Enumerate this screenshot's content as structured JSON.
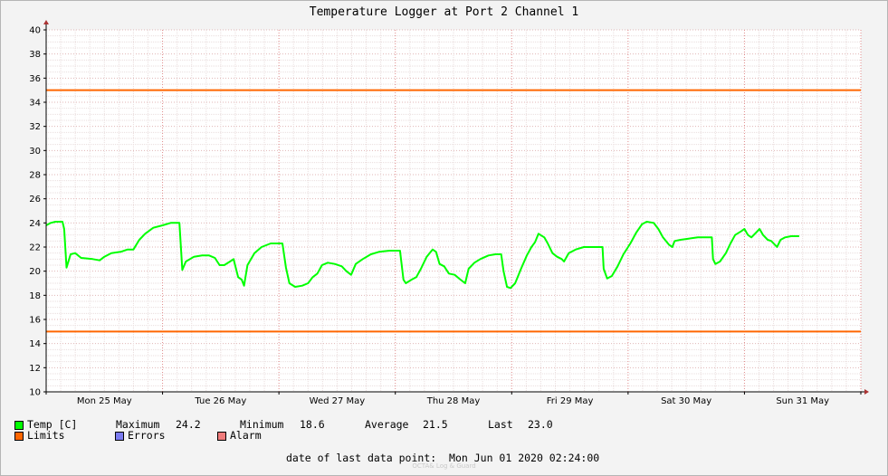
{
  "chart_data": {
    "type": "line",
    "title": "Temperature Logger at Port 2 Channel 1",
    "ylim": [
      10,
      40
    ],
    "y_ticks": [
      10,
      12,
      14,
      16,
      18,
      20,
      22,
      24,
      26,
      28,
      30,
      32,
      34,
      36,
      38,
      40
    ],
    "x_range_days": [
      0,
      7.0
    ],
    "x_ticks": [
      {
        "label": "Mon 25 May",
        "day": 0.5
      },
      {
        "label": "Tue 26 May",
        "day": 1.5
      },
      {
        "label": "Wed 27 May",
        "day": 2.5
      },
      {
        "label": "Thu 28 May",
        "day": 3.5
      },
      {
        "label": "Fri 29 May",
        "day": 4.5
      },
      {
        "label": "Sat 30 May",
        "day": 5.5
      },
      {
        "label": "Sun 31 May",
        "day": 6.5
      }
    ],
    "limits": {
      "upper": 35,
      "lower": 15
    },
    "series": [
      {
        "name": "Temp [C]",
        "color": "#00ff00",
        "points": [
          [
            0.0,
            23.8
          ],
          [
            0.04,
            24.0
          ],
          [
            0.08,
            24.1
          ],
          [
            0.14,
            24.1
          ],
          [
            0.155,
            23.5
          ],
          [
            0.175,
            20.3
          ],
          [
            0.21,
            21.4
          ],
          [
            0.25,
            21.5
          ],
          [
            0.3,
            21.1
          ],
          [
            0.4,
            21.0
          ],
          [
            0.46,
            20.9
          ],
          [
            0.5,
            21.2
          ],
          [
            0.56,
            21.5
          ],
          [
            0.64,
            21.6
          ],
          [
            0.7,
            21.8
          ],
          [
            0.75,
            21.8
          ],
          [
            0.8,
            22.6
          ],
          [
            0.85,
            23.1
          ],
          [
            0.92,
            23.6
          ],
          [
            1.0,
            23.8
          ],
          [
            1.07,
            24.0
          ],
          [
            1.145,
            24.0
          ],
          [
            1.17,
            20.1
          ],
          [
            1.2,
            20.8
          ],
          [
            1.27,
            21.2
          ],
          [
            1.34,
            21.3
          ],
          [
            1.4,
            21.3
          ],
          [
            1.45,
            21.1
          ],
          [
            1.49,
            20.5
          ],
          [
            1.53,
            20.5
          ],
          [
            1.58,
            20.8
          ],
          [
            1.61,
            21.0
          ],
          [
            1.65,
            19.5
          ],
          [
            1.68,
            19.3
          ],
          [
            1.7,
            18.8
          ],
          [
            1.73,
            20.5
          ],
          [
            1.79,
            21.5
          ],
          [
            1.85,
            22.0
          ],
          [
            1.93,
            22.3
          ],
          [
            2.03,
            22.3
          ],
          [
            2.06,
            20.3
          ],
          [
            2.09,
            19.0
          ],
          [
            2.14,
            18.7
          ],
          [
            2.2,
            18.8
          ],
          [
            2.25,
            19.0
          ],
          [
            2.29,
            19.5
          ],
          [
            2.33,
            19.8
          ],
          [
            2.37,
            20.5
          ],
          [
            2.42,
            20.7
          ],
          [
            2.48,
            20.6
          ],
          [
            2.54,
            20.4
          ],
          [
            2.58,
            20.0
          ],
          [
            2.62,
            19.7
          ],
          [
            2.66,
            20.6
          ],
          [
            2.72,
            21.0
          ],
          [
            2.79,
            21.4
          ],
          [
            2.86,
            21.6
          ],
          [
            2.95,
            21.7
          ],
          [
            3.04,
            21.7
          ],
          [
            3.07,
            19.3
          ],
          [
            3.09,
            19.0
          ],
          [
            3.14,
            19.3
          ],
          [
            3.18,
            19.5
          ],
          [
            3.22,
            20.2
          ],
          [
            3.27,
            21.2
          ],
          [
            3.32,
            21.8
          ],
          [
            3.35,
            21.6
          ],
          [
            3.38,
            20.6
          ],
          [
            3.42,
            20.4
          ],
          [
            3.46,
            19.8
          ],
          [
            3.51,
            19.7
          ],
          [
            3.56,
            19.3
          ],
          [
            3.6,
            19.0
          ],
          [
            3.63,
            20.2
          ],
          [
            3.68,
            20.7
          ],
          [
            3.73,
            21.0
          ],
          [
            3.8,
            21.3
          ],
          [
            3.86,
            21.4
          ],
          [
            3.91,
            21.4
          ],
          [
            3.93,
            20.0
          ],
          [
            3.96,
            18.7
          ],
          [
            3.99,
            18.6
          ],
          [
            4.03,
            19.0
          ],
          [
            4.08,
            20.2
          ],
          [
            4.13,
            21.3
          ],
          [
            4.17,
            22.0
          ],
          [
            4.2,
            22.4
          ],
          [
            4.23,
            23.1
          ],
          [
            4.28,
            22.8
          ],
          [
            4.31,
            22.3
          ],
          [
            4.35,
            21.5
          ],
          [
            4.39,
            21.2
          ],
          [
            4.43,
            21.0
          ],
          [
            4.45,
            20.8
          ],
          [
            4.49,
            21.5
          ],
          [
            4.55,
            21.8
          ],
          [
            4.62,
            22.0
          ],
          [
            4.72,
            22.0
          ],
          [
            4.78,
            22.0
          ],
          [
            4.79,
            20.2
          ],
          [
            4.82,
            19.4
          ],
          [
            4.86,
            19.6
          ],
          [
            4.91,
            20.4
          ],
          [
            4.96,
            21.4
          ],
          [
            5.02,
            22.3
          ],
          [
            5.07,
            23.2
          ],
          [
            5.12,
            23.9
          ],
          [
            5.16,
            24.1
          ],
          [
            5.22,
            24.0
          ],
          [
            5.26,
            23.5
          ],
          [
            5.3,
            22.8
          ],
          [
            5.35,
            22.2
          ],
          [
            5.38,
            22.0
          ],
          [
            5.4,
            22.5
          ],
          [
            5.45,
            22.6
          ],
          [
            5.52,
            22.7
          ],
          [
            5.6,
            22.8
          ],
          [
            5.68,
            22.8
          ],
          [
            5.72,
            22.8
          ],
          [
            5.73,
            21.0
          ],
          [
            5.75,
            20.6
          ],
          [
            5.79,
            20.8
          ],
          [
            5.84,
            21.5
          ],
          [
            5.88,
            22.3
          ],
          [
            5.92,
            23.0
          ],
          [
            5.97,
            23.3
          ],
          [
            6.0,
            23.5
          ],
          [
            6.03,
            23.0
          ],
          [
            6.06,
            22.8
          ],
          [
            6.1,
            23.2
          ],
          [
            6.13,
            23.5
          ],
          [
            6.16,
            23.0
          ],
          [
            6.2,
            22.6
          ],
          [
            6.23,
            22.5
          ],
          [
            6.26,
            22.2
          ],
          [
            6.28,
            22.0
          ],
          [
            6.31,
            22.6
          ],
          [
            6.35,
            22.8
          ],
          [
            6.4,
            22.9
          ],
          [
            6.47,
            22.9
          ]
        ]
      },
      {
        "name": "Limits",
        "color": "#ff6600"
      },
      {
        "name": "Errors",
        "color": "#7b7bf0"
      },
      {
        "name": "Alarm",
        "color": "#f07b7b"
      }
    ]
  },
  "stats": {
    "maximum_label": "Maximum",
    "maximum": "24.2",
    "minimum_label": "Minimum",
    "minimum": "18.6",
    "average_label": "Average",
    "average": "21.5",
    "last_label": "Last",
    "last": "23.0"
  },
  "footer": {
    "label": "date of last data point:",
    "value": "Mon Jun 01 2020 02:24:00",
    "watermark": "OCTA& Log & Guard"
  }
}
